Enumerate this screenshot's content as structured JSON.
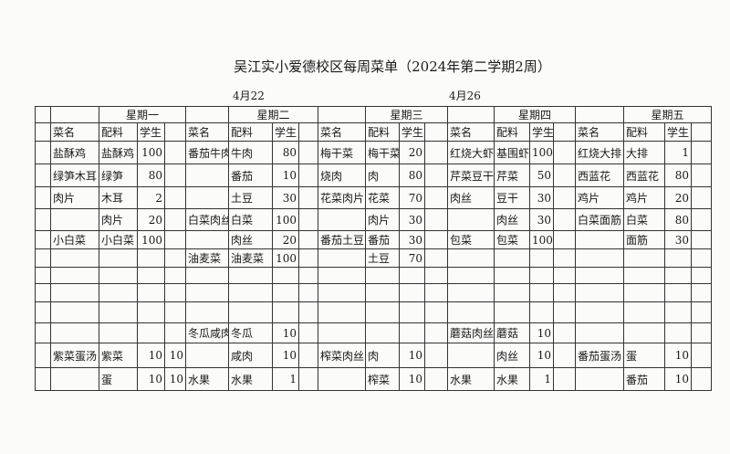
{
  "title": "吴江实小爱德校区每周菜单（2024年第二学期2周）",
  "dates": [
    "4月22",
    "4月26"
  ],
  "days": [
    "星期一",
    "星期二",
    "星期三",
    "星期四",
    "星期五"
  ],
  "column_headers": [
    "菜名",
    "配料",
    "学生",
    ""
  ],
  "rows": [
    [
      [
        "盐酥鸡",
        "盐酥鸡",
        "100",
        ""
      ],
      [
        "番茄牛肉",
        "牛肉",
        "80",
        ""
      ],
      [
        "梅干菜",
        "梅干菜",
        "20",
        ""
      ],
      [
        "红烧大虾",
        "基围虾",
        "100",
        ""
      ],
      [
        "红烧大排",
        "大排",
        "1",
        ""
      ]
    ],
    [
      [
        "绿笋木耳",
        "绿笋",
        "80",
        ""
      ],
      [
        "",
        "番茄",
        "10",
        ""
      ],
      [
        "烧肉",
        "肉",
        "80",
        ""
      ],
      [
        "芹菜豆干",
        "芹菜",
        "50",
        ""
      ],
      [
        "西蓝花",
        "西蓝花",
        "80",
        ""
      ]
    ],
    [
      [
        "肉片",
        "木耳",
        "2",
        ""
      ],
      [
        "",
        "土豆",
        "30",
        ""
      ],
      [
        "花菜肉片",
        "花菜",
        "70",
        ""
      ],
      [
        "肉丝",
        "豆干",
        "30",
        ""
      ],
      [
        "鸡片",
        "鸡片",
        "20",
        ""
      ]
    ],
    [
      [
        "",
        "肉片",
        "20",
        ""
      ],
      [
        "白菜肉丝",
        "白菜",
        "100",
        ""
      ],
      [
        "",
        "肉片",
        "30",
        ""
      ],
      [
        "",
        "肉丝",
        "30",
        ""
      ],
      [
        "白菜面筋",
        "白菜",
        "80",
        ""
      ]
    ],
    [
      [
        "小白菜",
        "小白菜",
        "100",
        ""
      ],
      [
        "",
        "肉丝",
        "20",
        ""
      ],
      [
        "番茄土豆",
        "番茄",
        "30",
        ""
      ],
      [
        "包菜",
        "包菜",
        "100",
        ""
      ],
      [
        "",
        "面筋",
        "30",
        ""
      ]
    ],
    [
      [
        "",
        "",
        "",
        ""
      ],
      [
        "油麦菜",
        "油麦菜",
        "100",
        ""
      ],
      [
        "",
        "土豆",
        "70",
        ""
      ],
      [
        "",
        "",
        "",
        ""
      ],
      [
        "",
        "",
        "",
        ""
      ]
    ],
    [
      [
        "",
        "",
        "",
        ""
      ],
      [
        "",
        "",
        "",
        ""
      ],
      [
        "",
        "",
        "",
        ""
      ],
      [
        "",
        "",
        "",
        ""
      ],
      [
        "",
        "",
        "",
        ""
      ]
    ],
    [
      [
        "",
        "",
        "",
        ""
      ],
      [
        "",
        "",
        "",
        ""
      ],
      [
        "",
        "",
        "",
        ""
      ],
      [
        "",
        "",
        "",
        ""
      ],
      [
        "",
        "",
        "",
        ""
      ]
    ],
    [
      [
        "",
        "",
        "",
        ""
      ],
      [
        "",
        "",
        "",
        ""
      ],
      [
        "",
        "",
        "",
        ""
      ],
      [
        "",
        "",
        "",
        ""
      ],
      [
        "",
        "",
        "",
        ""
      ]
    ],
    [
      [
        "",
        "",
        "",
        ""
      ],
      [
        "冬瓜咸肉",
        "冬瓜",
        "10",
        ""
      ],
      [
        "",
        "",
        "",
        ""
      ],
      [
        "蘑菇肉丝",
        "蘑菇",
        "10",
        ""
      ],
      [
        "",
        "",
        "",
        ""
      ]
    ],
    [
      [
        "紫菜蛋汤",
        "紫菜",
        "10",
        "10"
      ],
      [
        "",
        "咸肉",
        "10",
        ""
      ],
      [
        "榨菜肉丝",
        "肉",
        "10",
        ""
      ],
      [
        "",
        "肉丝",
        "10",
        ""
      ],
      [
        "番茄蛋汤",
        "蛋",
        "10",
        ""
      ]
    ],
    [
      [
        "",
        "蛋",
        "10",
        "10"
      ],
      [
        "水果",
        "水果",
        "1",
        ""
      ],
      [
        "",
        "榨菜",
        "10",
        ""
      ],
      [
        "水果",
        "水果",
        "1",
        ""
      ],
      [
        "",
        "番茄",
        "10",
        ""
      ]
    ]
  ]
}
